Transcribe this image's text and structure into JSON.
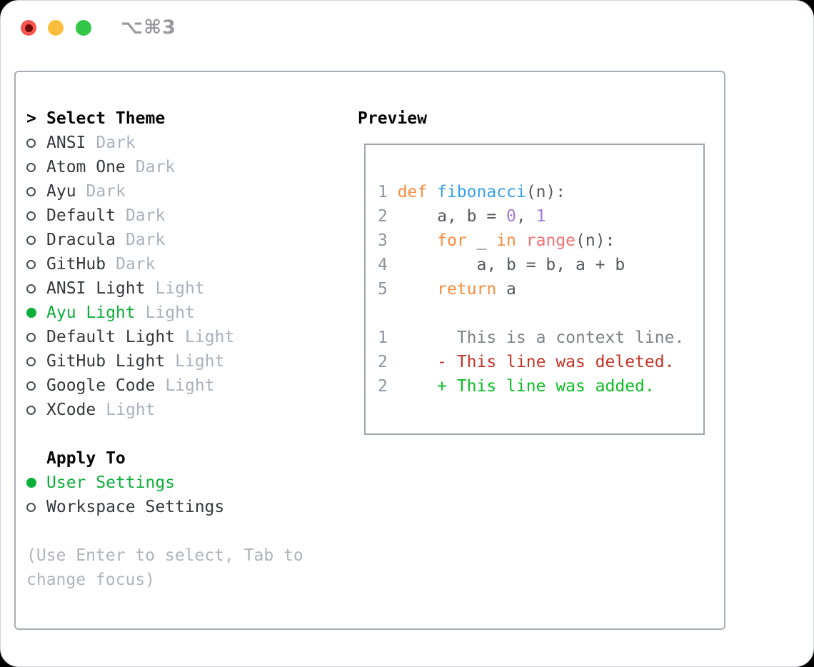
{
  "window": {
    "title": "⌥⌘3",
    "traffic_lights": {
      "close": "close",
      "minimize": "minimize",
      "zoom": "zoom"
    }
  },
  "theme_selector": {
    "prefix": ">",
    "header": "Select Theme",
    "items": [
      {
        "name": "ANSI",
        "tag": "Dark",
        "selected": false
      },
      {
        "name": "Atom One",
        "tag": "Dark",
        "selected": false
      },
      {
        "name": "Ayu",
        "tag": "Dark",
        "selected": false
      },
      {
        "name": "Default",
        "tag": "Dark",
        "selected": false
      },
      {
        "name": "Dracula",
        "tag": "Dark",
        "selected": false
      },
      {
        "name": "GitHub",
        "tag": "Dark",
        "selected": false
      },
      {
        "name": "ANSI Light",
        "tag": "Light",
        "selected": false
      },
      {
        "name": "Ayu Light",
        "tag": "Light",
        "selected": true
      },
      {
        "name": "Default Light",
        "tag": "Light",
        "selected": false
      },
      {
        "name": "GitHub Light",
        "tag": "Light",
        "selected": false
      },
      {
        "name": "Google Code",
        "tag": "Light",
        "selected": false
      },
      {
        "name": "XCode",
        "tag": "Light",
        "selected": false
      }
    ]
  },
  "apply_to": {
    "header": "Apply To",
    "options": [
      {
        "name": "User Settings",
        "selected": true
      },
      {
        "name": "Workspace Settings",
        "selected": false
      }
    ]
  },
  "hint": {
    "line1": "(Use Enter to select, Tab to",
    "line2": "change focus)"
  },
  "preview": {
    "header": "Preview",
    "code_lines": [
      {
        "num": "1",
        "tokens": [
          {
            "t": "def ",
            "c": "kw"
          },
          {
            "t": "fibonacci",
            "c": "fn"
          },
          {
            "t": "(n):",
            "c": "pl"
          }
        ]
      },
      {
        "num": "2",
        "tokens": [
          {
            "t": "    a, b = ",
            "c": "pl"
          },
          {
            "t": "0",
            "c": "nu"
          },
          {
            "t": ", ",
            "c": "pl"
          },
          {
            "t": "1",
            "c": "nu"
          }
        ]
      },
      {
        "num": "3",
        "tokens": [
          {
            "t": "    ",
            "c": "pl"
          },
          {
            "t": "for",
            "c": "kw"
          },
          {
            "t": " _ ",
            "c": "pl"
          },
          {
            "t": "in",
            "c": "kw"
          },
          {
            "t": " ",
            "c": "pl"
          },
          {
            "t": "range",
            "c": "bi"
          },
          {
            "t": "(n):",
            "c": "pl"
          }
        ]
      },
      {
        "num": "4",
        "tokens": [
          {
            "t": "        a, b = b, a + b",
            "c": "pl"
          }
        ]
      },
      {
        "num": "5",
        "tokens": [
          {
            "t": "    ",
            "c": "pl"
          },
          {
            "t": "return",
            "c": "kw"
          },
          {
            "t": " a",
            "c": "pl"
          }
        ]
      }
    ],
    "diff_lines": [
      {
        "num": "1",
        "marker": " ",
        "text": "This is a context line.",
        "kind": "context"
      },
      {
        "num": "2",
        "marker": "-",
        "text": "This line was deleted.",
        "kind": "deleted"
      },
      {
        "num": "2",
        "marker": "+",
        "text": "This line was added.",
        "kind": "added"
      }
    ]
  },
  "colors": {
    "selected_green": "#0daf3a",
    "keyword_orange": "#f98d3d",
    "function_blue": "#38a1e9",
    "number_purple": "#a579d2",
    "builtin_coral": "#f07171",
    "diff_deleted_red": "#c43425",
    "diff_added_green": "#0bbd23",
    "traffic_red": "#f5564e",
    "traffic_yellow": "#fcbd3f",
    "traffic_green": "#32c746"
  }
}
